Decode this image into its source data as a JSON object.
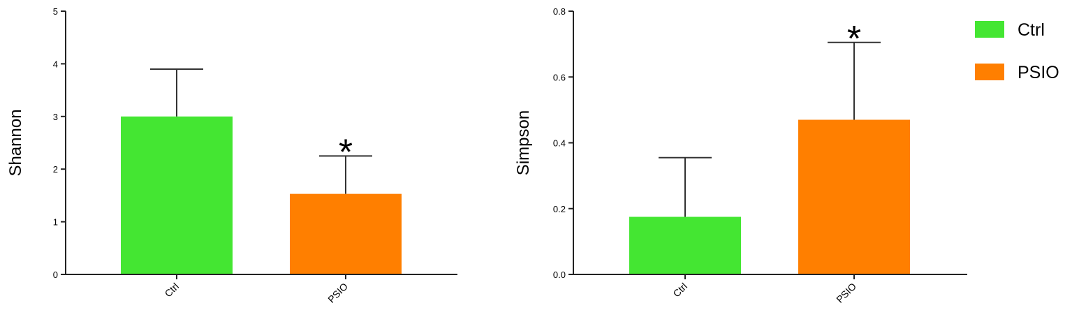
{
  "chart_data": [
    {
      "type": "bar",
      "categories": [
        "Ctrl",
        "PSIO"
      ],
      "values": [
        3.0,
        1.53
      ],
      "errors": [
        0.9,
        0.72
      ],
      "significance": [
        "",
        "*"
      ],
      "ylabel": "Shannon",
      "xlabel": "",
      "ylim": [
        0,
        5
      ],
      "yticks": [
        "0",
        "1",
        "2",
        "3",
        "4",
        "5"
      ],
      "grid": false
    },
    {
      "type": "bar",
      "categories": [
        "Ctrl",
        "PSIO"
      ],
      "values": [
        0.175,
        0.47
      ],
      "errors": [
        0.18,
        0.235
      ],
      "significance": [
        "",
        "*"
      ],
      "ylabel": "Simpson",
      "xlabel": "",
      "ylim": [
        0,
        0.8
      ],
      "yticks": [
        "0.0",
        "0.2",
        "0.4",
        "0.6",
        "0.8"
      ],
      "grid": false
    }
  ],
  "legend": {
    "position": "top-right",
    "items": [
      {
        "label": "Ctrl",
        "color": "#44e632"
      },
      {
        "label": "PSIO",
        "color": "#ff7f00"
      }
    ]
  },
  "colors": {
    "Ctrl": "#44e632",
    "PSIO": "#ff7f00"
  }
}
